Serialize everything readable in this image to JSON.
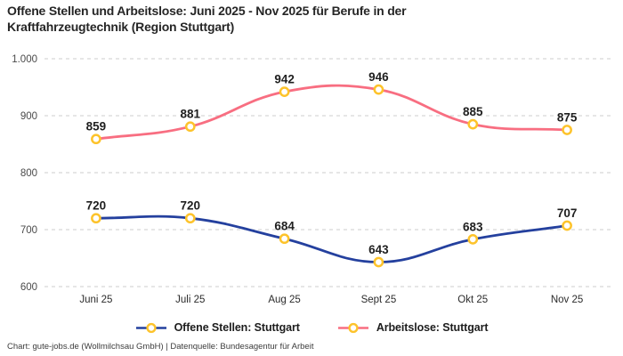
{
  "header": {
    "title": "Offene Stellen und Arbeitslose: Juni 2025 - Nov 2025 für Berufe in der Kraftfahrzeugtechnik (Region Stuttgart)"
  },
  "chart_data": {
    "type": "line",
    "title": "Offene Stellen und Arbeitslose: Juni 2025 - Nov 2025 für Berufe in der Kraftfahrzeugtechnik (Region Stuttgart)",
    "categories": [
      "Juni 25",
      "Juli 25",
      "Aug 25",
      "Sept 25",
      "Okt 25",
      "Nov 25"
    ],
    "series": [
      {
        "name": "Offene Stellen: Stuttgart",
        "values": [
          720,
          720,
          684,
          643,
          683,
          707
        ],
        "color": "#24409e"
      },
      {
        "name": "Arbeitslose: Stuttgart",
        "values": [
          859,
          881,
          942,
          946,
          885,
          875
        ],
        "color": "#f86e81"
      }
    ],
    "ylim": [
      600,
      1000
    ],
    "yticks": [
      1000,
      900,
      800,
      700,
      600
    ],
    "ytick_labels": [
      "1.000",
      "900",
      "800",
      "700",
      "600"
    ],
    "xlabel": "",
    "ylabel": "",
    "grid": "horizontal-dashed",
    "legend_position": "bottom",
    "data_labels": true,
    "marker": {
      "fill": "#ffffff",
      "stroke": "#fdc32b"
    }
  },
  "colors": {
    "grid": "#cccccc",
    "y_tick_text": "#4a4a4a",
    "x_tick_text": "#2b2b2b",
    "data_label_text": "#1f1f1f"
  },
  "footer": {
    "credit": "Chart: gute-jobs.de (Wollmilchsau GmbH) | Datenquelle: Bundesagentur für Arbeit"
  }
}
